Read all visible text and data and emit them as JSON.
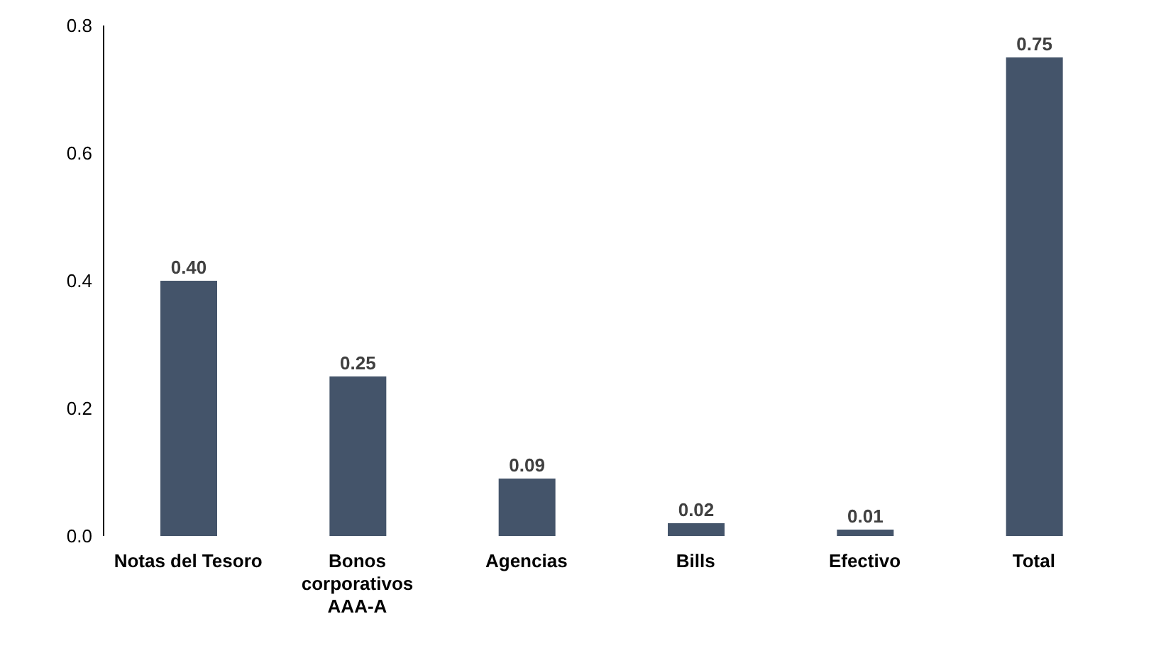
{
  "chart_data": {
    "type": "bar",
    "categories": [
      "Notas del Tesoro",
      "Bonos corporativos AAA-A",
      "Agencias",
      "Bills",
      "Efectivo",
      "Total"
    ],
    "values": [
      0.4,
      0.25,
      0.09,
      0.02,
      0.01,
      0.75
    ],
    "value_labels": [
      "0.40",
      "0.25",
      "0.09",
      "0.02",
      "0.01",
      "0.75"
    ],
    "color": "#44546a",
    "ylim": [
      0,
      0.8
    ],
    "yticks": [
      {
        "value": 0,
        "label": "0.0"
      },
      0.2,
      0.4,
      0.6,
      0.8
    ],
    "grid": false,
    "legend": false
  }
}
